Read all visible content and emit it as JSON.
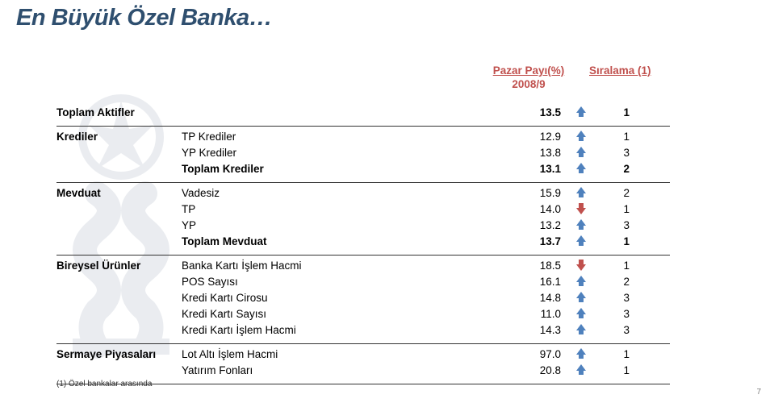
{
  "slide": {
    "title": "En Büyük Özel Banka…",
    "page_number": "7",
    "footnote": "(1)  Özel bankalar arasında",
    "headers": {
      "pazar": "Pazar Payı(%)",
      "period": "2008/9",
      "rank": "Sıralama (1)"
    },
    "sections": [
      {
        "label": "Toplam Aktifler",
        "rows": [
          {
            "mid": "",
            "val": "13.5",
            "arrow": "up-blue",
            "rank": "1",
            "bold": true
          }
        ]
      },
      {
        "label": "Krediler",
        "rows": [
          {
            "mid": "TP Krediler",
            "val": "12.9",
            "arrow": "up-blue",
            "rank": "1"
          },
          {
            "mid": "YP Krediler",
            "val": "13.8",
            "arrow": "up-blue",
            "rank": "3"
          },
          {
            "mid": "Toplam Krediler",
            "val": "13.1",
            "arrow": "up-blue",
            "rank": "2",
            "bold": true
          }
        ]
      },
      {
        "label": "Mevduat",
        "rows": [
          {
            "mid": "Vadesiz",
            "val": "15.9",
            "arrow": "up-blue",
            "rank": "2"
          },
          {
            "mid": "TP",
            "val": "14.0",
            "arrow": "down-red",
            "rank": "1"
          },
          {
            "mid": "YP",
            "val": "13.2",
            "arrow": "up-blue",
            "rank": "3"
          },
          {
            "mid": "Toplam Mevduat",
            "val": "13.7",
            "arrow": "up-blue",
            "rank": "1",
            "bold": true
          }
        ]
      },
      {
        "label": "Bireysel Ürünler",
        "rows": [
          {
            "mid": "Banka Kartı İşlem Hacmi",
            "val": "18.5",
            "arrow": "down-red",
            "rank": "1"
          },
          {
            "mid": "POS Sayısı",
            "val": "16.1",
            "arrow": "up-blue",
            "rank": "2"
          },
          {
            "mid": "Kredi Kartı Cirosu",
            "val": "14.8",
            "arrow": "up-blue",
            "rank": "3"
          },
          {
            "mid": "Kredi Kartı Sayısı",
            "val": "11.0",
            "arrow": "up-blue",
            "rank": "3"
          },
          {
            "mid": "Kredi Kartı İşlem Hacmi",
            "val": "14.3",
            "arrow": "up-blue",
            "rank": "3"
          }
        ]
      },
      {
        "label": "Sermaye Piyasaları",
        "rows": [
          {
            "mid": "Lot Altı İşlem Hacmi",
            "val": "97.0",
            "arrow": "up-blue",
            "rank": "1"
          },
          {
            "mid": "Yatırım Fonları",
            "val": "20.8",
            "arrow": "up-blue",
            "rank": "1"
          }
        ]
      }
    ]
  },
  "colors": {
    "title": "#2f4f6f",
    "header_red": "#c0504d",
    "arrow_blue": "#4f81bd",
    "arrow_red": "#c0504d",
    "divider": "#333333"
  }
}
